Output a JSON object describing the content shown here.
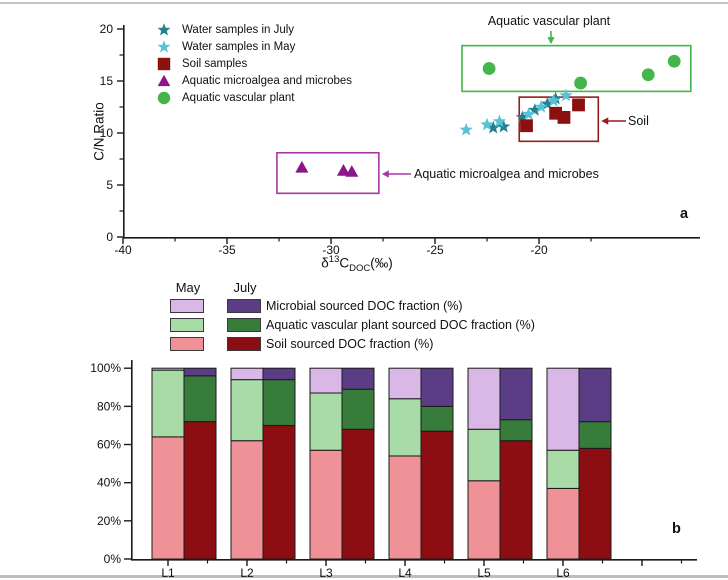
{
  "chart_data": [
    {
      "id": "panel_a",
      "type": "scatter",
      "panel_label": "a",
      "ylabel": "C/N Ratio",
      "xlabel": "δ13C_DOC(‰)",
      "xlabel_parts": {
        "prefix": "δ",
        "sup": "13",
        "base": "C",
        "sub": "DOC",
        "suffix": "(‰)"
      },
      "xlim": [
        -40,
        -12.25
      ],
      "xticks": [
        -40,
        -35,
        -30,
        -25,
        -20
      ],
      "xminorticks": [
        -37.5,
        -32.5,
        -27.5,
        -22.5,
        -17.5
      ],
      "ylim": [
        0,
        20
      ],
      "yticks": [
        0,
        5,
        10,
        15,
        20
      ],
      "yminorticks": [
        2.5,
        7.5,
        12.5,
        17.5
      ],
      "grid": false,
      "legend_position": "top-left",
      "legend": [
        {
          "label": "Water samples in July",
          "marker": "star",
          "color": "#277f8e"
        },
        {
          "label": "Water samples in May",
          "marker": "star",
          "color": "#58c3d6"
        },
        {
          "label": "Soil samples",
          "marker": "square",
          "color": "#8b1111"
        },
        {
          "label": "Aquatic microalgea and microbes",
          "marker": "triangle",
          "color": "#8c158c"
        },
        {
          "label": "Aquatic vascular plant",
          "marker": "circle",
          "color": "#43b549"
        }
      ],
      "series": [
        {
          "name": "Water samples in July",
          "marker": "star",
          "color": "#277f8e",
          "points": [
            [
              -22.2,
              10.5
            ],
            [
              -21.7,
              10.6
            ],
            [
              -20.8,
              11.5
            ],
            [
              -20.2,
              12.2
            ],
            [
              -19.6,
              12.8
            ],
            [
              -19.2,
              13.3
            ]
          ]
        },
        {
          "name": "Water samples in May",
          "marker": "star",
          "color": "#58c3d6",
          "points": [
            [
              -23.5,
              10.3
            ],
            [
              -22.5,
              10.8
            ],
            [
              -21.9,
              11.1
            ],
            [
              -20.5,
              11.8
            ],
            [
              -19.9,
              12.5
            ],
            [
              -19.3,
              13.1
            ],
            [
              -18.7,
              13.6
            ]
          ]
        },
        {
          "name": "Soil samples",
          "marker": "square",
          "color": "#8b1111",
          "points": [
            [
              -20.6,
              10.7
            ],
            [
              -19.2,
              11.9
            ],
            [
              -18.8,
              11.5
            ],
            [
              -18.1,
              12.7
            ]
          ]
        },
        {
          "name": "Aquatic microalgea and microbes",
          "marker": "triangle",
          "color": "#8c158c",
          "points": [
            [
              -31.4,
              6.7
            ],
            [
              -29.4,
              6.4
            ],
            [
              -29.0,
              6.3
            ]
          ]
        },
        {
          "name": "Aquatic vascular plant",
          "marker": "circle",
          "color": "#43b549",
          "points": [
            [
              -22.4,
              16.2
            ],
            [
              -18.0,
              14.8
            ],
            [
              -14.75,
              15.6
            ],
            [
              -13.5,
              16.9
            ]
          ]
        }
      ],
      "boxes": [
        {
          "label": "Aquatic vascular plant",
          "x1": -23.7,
          "x2": -12.7,
          "y1": 14.0,
          "y2": 18.4,
          "color": "#43b549",
          "arrow": "down",
          "label_side": "top"
        },
        {
          "label": "Soil",
          "x1": -20.95,
          "x2": -17.15,
          "y1": 9.2,
          "y2": 13.45,
          "color": "#9a1b1b",
          "arrow": "left",
          "label_side": "right"
        },
        {
          "label": "Aquatic microalgea and microbes",
          "x1": -32.6,
          "x2": -27.7,
          "y1": 4.2,
          "y2": 8.1,
          "color": "#a438a4",
          "arrow": "left",
          "label_side": "right"
        }
      ]
    },
    {
      "id": "panel_b",
      "type": "stacked_bar_percent",
      "panel_label": "b",
      "categories": [
        "L1",
        "L2",
        "L3",
        "L4",
        "L5",
        "L6"
      ],
      "ytick_labels": [
        "0%",
        "20%",
        "40%",
        "60%",
        "80%",
        "100%"
      ],
      "yticks": [
        0,
        20,
        40,
        60,
        80,
        100
      ],
      "ylim": [
        0,
        100
      ],
      "grid": false,
      "legend_columns": [
        "May",
        "July"
      ],
      "fractions": [
        {
          "label": "Microbial sourced DOC fraction (%)",
          "may_color": "#d9b7e6",
          "july_color": "#5a3d85"
        },
        {
          "label": "Aquatic vascular plant sourced DOC fraction (%)",
          "may_color": "#a8dba5",
          "july_color": "#377c3b"
        },
        {
          "label": "Soil sourced DOC fraction (%)",
          "may_color": "#ef9298",
          "july_color": "#8c0e13"
        }
      ],
      "series": [
        {
          "name": "May",
          "soil": [
            64,
            62,
            57,
            54,
            41,
            37
          ],
          "plant": [
            35,
            32,
            30,
            30,
            27,
            20
          ],
          "microbial": [
            1,
            6,
            13,
            16,
            32,
            43
          ]
        },
        {
          "name": "July",
          "soil": [
            72,
            70,
            68,
            67,
            62,
            58
          ],
          "plant": [
            24,
            24,
            21,
            13,
            11,
            14
          ],
          "microbial": [
            4,
            6,
            11,
            20,
            27,
            28
          ]
        }
      ],
      "stack_order_bottom_to_top": [
        "soil",
        "plant",
        "microbial"
      ]
    }
  ],
  "colors": {
    "axis": "#1a1a1a",
    "text": "#111111",
    "bar_outline": "#1a1a1a"
  }
}
